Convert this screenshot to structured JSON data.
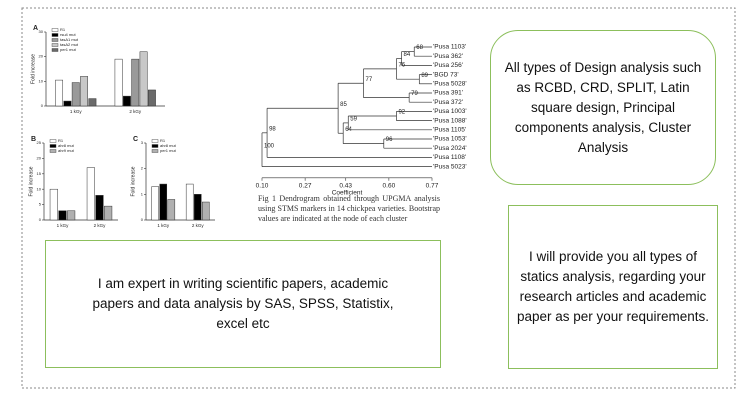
{
  "bar_figure": {
    "panels": [
      {
        "letter": "A",
        "ylabel": "Fold increase",
        "groups": [
          "1 kGy",
          "2 kGy"
        ],
        "ylim": [
          0,
          30
        ],
        "yticks": [
          0,
          10,
          20,
          30
        ],
        "series": [
          {
            "name": "R1",
            "color": "#ffffff",
            "values": [
              10.5,
              19
            ]
          },
          {
            "name": "rsu4 mut",
            "color": "#000000",
            "values": [
              2,
              4
            ]
          },
          {
            "name": "tasA1 mut",
            "color": "#9a9a9a",
            "values": [
              9.5,
              19
            ]
          },
          {
            "name": "tasA2 mut",
            "color": "#c8c8c8",
            "values": [
              12,
              22
            ]
          },
          {
            "name": "per1 mut",
            "color": "#6a6a6a",
            "values": [
              3,
              6.5
            ]
          }
        ]
      },
      {
        "letter": "B",
        "ylabel": "Fold increase",
        "groups": [
          "1 kGy",
          "2 kGy"
        ],
        "ylim": [
          0,
          25
        ],
        "yticks": [
          0,
          5,
          10,
          15,
          20,
          25
        ],
        "series": [
          {
            "name": "R1",
            "color": "#ffffff",
            "values": [
              10,
              17
            ]
          },
          {
            "name": "ahr8 mut",
            "color": "#000000",
            "values": [
              3,
              8
            ]
          },
          {
            "name": "ahr9 mut",
            "color": "#b0b0b0",
            "values": [
              3,
              4.5
            ]
          }
        ]
      },
      {
        "letter": "C",
        "ylabel": "Fold increase",
        "groups": [
          "1 kGy",
          "2 kGy"
        ],
        "ylim": [
          0,
          3
        ],
        "yticks": [
          0,
          1,
          2,
          3
        ],
        "series": [
          {
            "name": "R1",
            "color": "#ffffff",
            "values": [
              1.3,
              1.4
            ]
          },
          {
            "name": "ahr8 mut",
            "color": "#000000",
            "values": [
              1.4,
              1.0
            ]
          },
          {
            "name": "per1 mut",
            "color": "#b0b0b0",
            "values": [
              0.8,
              0.7
            ]
          }
        ]
      }
    ]
  },
  "dendrogram": {
    "leaves": [
      "'Pusa 1103'",
      "'Pusa 362'",
      "'Pusa 256'",
      "'BGD 73'",
      "'Pusa 5028'",
      "'Pusa 391'",
      "'Pusa 372'",
      "'Pusa 1003'",
      "'Pusa 1088'",
      "'Pusa 1105'",
      "'Pusa 1053'",
      "'Pusa 2024'",
      "'Pusa 1108'",
      "'Pusa 5023'"
    ],
    "nodes": [
      {
        "label": "68",
        "coefficient": 0.7
      },
      {
        "label": "84",
        "coefficient": 0.65
      },
      {
        "label": "89",
        "coefficient": 0.72
      },
      {
        "label": "76",
        "coefficient": 0.63
      },
      {
        "label": "79",
        "coefficient": 0.68
      },
      {
        "label": "77",
        "coefficient": 0.5
      },
      {
        "label": "92",
        "coefficient": 0.63
      },
      {
        "label": "59",
        "coefficient": 0.44
      },
      {
        "label": "96",
        "coefficient": 0.58
      },
      {
        "label": "64",
        "coefficient": 0.42
      },
      {
        "label": "85",
        "coefficient": 0.4
      },
      {
        "label": "98",
        "coefficient": 0.12
      },
      {
        "label": "100",
        "coefficient": 0.1
      }
    ],
    "xlabel": "Coefficient",
    "xlim": [
      0.1,
      0.77
    ],
    "xticks": [
      {
        "value": 0.1,
        "label": "0.10"
      },
      {
        "value": 0.27,
        "label": "0.27"
      },
      {
        "value": 0.43,
        "label": "0.43"
      },
      {
        "value": 0.6,
        "label": "0.60"
      },
      {
        "value": 0.77,
        "label": "0.77"
      }
    ],
    "caption": "Fig 1 Dendrogram obtained through UPGMA analysis using STMS markers in 14 chickpea varieties. Bootstrap values are indicated at the node of each cluster"
  },
  "boxes": {
    "design": "All types of Design analysis such as RCBD, CRD, SPLIT, Latin square design, Principal components analysis, Cluster Analysis",
    "expert": "I am expert in writing scientific papers, academic papers and data analysis by SAS, SPSS, Statistix, excel etc",
    "provide": "I will provide you all types of statics analysis, regarding your research articles and academic paper as per your requirements."
  }
}
